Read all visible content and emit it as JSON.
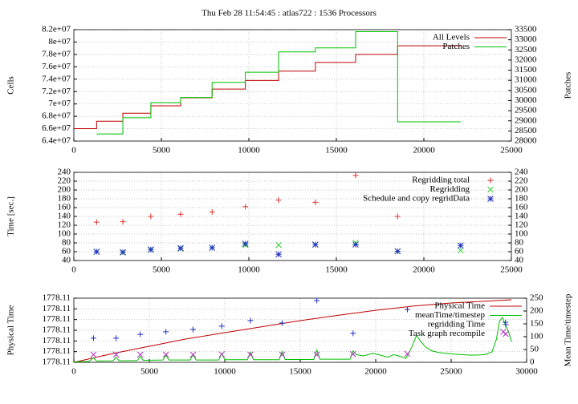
{
  "chart_data": [
    {
      "type": "line",
      "title": "Thu Feb 28 11:54:45 : atlas722 : 1536 Processors",
      "ylabel": "Cells",
      "ylabel_color": "#c00000",
      "y2label": "Patches",
      "y2label_color": "#00c000",
      "xlim": [
        0,
        25000
      ],
      "xticks": [
        0,
        5000,
        10000,
        15000,
        20000,
        25000
      ],
      "ylim": [
        64000000,
        82000000
      ],
      "yticks": [
        {
          "value": 64000000,
          "label": "6.4e+07"
        },
        {
          "value": 66000000,
          "label": "6.6e+07"
        },
        {
          "value": 68000000,
          "label": "6.8e+07"
        },
        {
          "value": 70000000,
          "label": "7e+07"
        },
        {
          "value": 72000000,
          "label": "7.2e+07"
        },
        {
          "value": 74000000,
          "label": "7.4e+07"
        },
        {
          "value": 76000000,
          "label": "7.6e+07"
        },
        {
          "value": 78000000,
          "label": "7.8e+07"
        },
        {
          "value": 80000000,
          "label": "8e+07"
        },
        {
          "value": 82000000,
          "label": "8.2e+07"
        }
      ],
      "y2lim": [
        28000,
        33500
      ],
      "y2ticks": [
        28000,
        28500,
        29000,
        29500,
        30000,
        30500,
        31000,
        31500,
        32000,
        32500,
        33000,
        33500
      ],
      "grid": true,
      "legend": "top-right",
      "series": [
        {
          "name": "All Levels",
          "color": "#c00000",
          "style": "step",
          "x": [
            0,
            1300,
            2800,
            4400,
            6100,
            7900,
            9800,
            11700,
            13800,
            16100,
            18500,
            22100
          ],
          "values": [
            66000000,
            67200000,
            68500000,
            69700000,
            71000000,
            72400000,
            73800000,
            75300000,
            76700000,
            78000000,
            79400000,
            79400000
          ]
        },
        {
          "name": "Patches",
          "color": "#00c000",
          "style": "step",
          "axis": "y2",
          "x": [
            1300,
            2800,
            4400,
            6100,
            7900,
            9800,
            11700,
            13800,
            16100,
            18500,
            22100
          ],
          "values": [
            28350,
            29150,
            29900,
            30150,
            30900,
            31400,
            32400,
            32600,
            33400,
            28950,
            28950
          ]
        }
      ]
    },
    {
      "type": "scatter",
      "ylabel": "Time [sec.]",
      "ylabel_color": "#c00000",
      "xlim": [
        0,
        25000
      ],
      "xticks": [
        0,
        5000,
        10000,
        15000,
        20000,
        25000
      ],
      "ylim": [
        40,
        240
      ],
      "yticks": [
        40,
        60,
        80,
        100,
        120,
        140,
        160,
        180,
        200,
        220,
        240
      ],
      "y2lim": [
        40,
        240
      ],
      "y2ticks": [
        40,
        60,
        80,
        100,
        120,
        140,
        160,
        180,
        200,
        220,
        240
      ],
      "grid": true,
      "legend": "top-right",
      "series": [
        {
          "name": "Regridding total",
          "color": "#e03030",
          "marker": "+",
          "x": [
            1300,
            2800,
            4400,
            6100,
            7900,
            9800,
            11700,
            13800,
            16100,
            18500
          ],
          "values": [
            127,
            128,
            140,
            145,
            150,
            162,
            177,
            172,
            233,
            140
          ]
        },
        {
          "name": "Regridding",
          "color": "#30d030",
          "marker": "x",
          "x": [
            1300,
            2800,
            4400,
            6100,
            7900,
            9800,
            11700,
            13800,
            16100,
            18500,
            22100
          ],
          "values": [
            60,
            58,
            64,
            67,
            69,
            75,
            75,
            76,
            80,
            61,
            63
          ]
        },
        {
          "name": "Schedule and copy regridData",
          "color": "#2030c0",
          "marker": "*",
          "x": [
            1300,
            2800,
            4400,
            6100,
            7900,
            9800,
            11700,
            13800,
            16100,
            18500,
            22100
          ],
          "values": [
            60,
            59,
            65,
            68,
            69,
            78,
            54,
            76,
            76,
            61,
            74
          ]
        }
      ]
    },
    {
      "type": "line",
      "ylabel": "Physical Time",
      "ylabel_color": "#c00000",
      "y2label": "Mean Time/timestep",
      "y2label_color": "#00c000",
      "xlim": [
        0,
        30000
      ],
      "xticks": [
        0,
        5000,
        10000,
        15000,
        20000,
        25000,
        30000
      ],
      "ylim": [
        1778.1055,
        1778.1145
      ],
      "yticks": [
        {
          "value": 1778.1055,
          "label": "1778.11"
        },
        {
          "value": 1778.107,
          "label": "1778.11"
        },
        {
          "value": 1778.1085,
          "label": "1778.11"
        },
        {
          "value": 1778.11,
          "label": "1778.11"
        },
        {
          "value": 1778.1115,
          "label": "1778.11"
        },
        {
          "value": 1778.113,
          "label": "1778.11"
        },
        {
          "value": 1778.1145,
          "label": "1778.11"
        }
      ],
      "y2lim": [
        0,
        250
      ],
      "y2ticks": [
        0,
        50,
        100,
        150,
        200,
        250
      ],
      "grid": true,
      "legend": "top-right",
      "series": [
        {
          "name": "Physical Time",
          "color": "#c00000",
          "style": "line",
          "x": [
            0,
            2500,
            5000,
            7500,
            10000,
            12500,
            15000,
            17500,
            20000,
            22500,
            25000,
            27500,
            29000
          ],
          "values": [
            1778.1055,
            1778.1067,
            1778.10775,
            1778.1088,
            1778.10966,
            1778.1105,
            1778.11135,
            1778.1121,
            1778.1128,
            1778.1134,
            1778.11383,
            1778.1141,
            1778.11428
          ]
        },
        {
          "name": "meanTime/timestep",
          "color": "#00c000",
          "style": "line",
          "axis": "y2",
          "x": [
            0,
            1000,
            1300,
            1500,
            2600,
            2800,
            3000,
            4200,
            4400,
            4600,
            5900,
            6100,
            6300,
            7700,
            7900,
            8100,
            9600,
            9800,
            10000,
            11500,
            11700,
            11900,
            13600,
            13800,
            14000,
            15900,
            16100,
            16300,
            18300,
            18500,
            18700,
            19200,
            19800,
            20300,
            20800,
            21200,
            21700,
            22000,
            22400,
            22700,
            23000,
            23300,
            23700,
            24200,
            24700,
            25200,
            25700,
            26200,
            26700,
            27200,
            27700,
            28000,
            28200,
            28400,
            28600,
            28800,
            29000
          ],
          "values": [
            2,
            3,
            18,
            5,
            6,
            20,
            6,
            7,
            22,
            8,
            9,
            28,
            9,
            9,
            30,
            9,
            9,
            35,
            10,
            10,
            40,
            10,
            10,
            42,
            11,
            11,
            48,
            12,
            12,
            45,
            30,
            25,
            35,
            28,
            20,
            30,
            22,
            15,
            60,
            105,
            80,
            60,
            45,
            38,
            35,
            32,
            30,
            28,
            28,
            30,
            40,
            90,
            160,
            175,
            145,
            120,
            80
          ]
        },
        {
          "name": "regridding Time",
          "color": "#2030c0",
          "style": "points",
          "marker": "+",
          "axis": "y2",
          "x": [
            1300,
            2800,
            4400,
            6100,
            7900,
            9800,
            11700,
            13800,
            16100,
            18500,
            22100,
            28600
          ],
          "values": [
            94,
            94,
            109,
            119,
            128,
            141,
            163,
            153,
            241,
            113,
            206,
            156
          ]
        },
        {
          "name": "Task graph recompile",
          "color": "#b030c0",
          "style": "points",
          "marker": "x",
          "axis": "y2",
          "x": [
            1300,
            2800,
            4400,
            6100,
            7900,
            9800,
            11700,
            13800,
            16100,
            18500,
            22100,
            28450
          ],
          "values": [
            30,
            30,
            30,
            30,
            30,
            31,
            30,
            30,
            30,
            32,
            33,
            119
          ]
        }
      ]
    }
  ]
}
